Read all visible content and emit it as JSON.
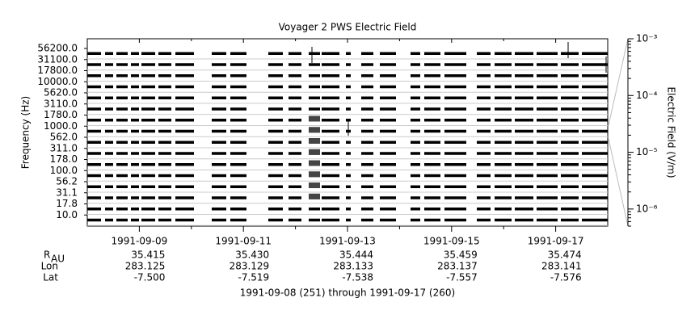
{
  "chart_data": {
    "type": "stacked-channels",
    "title": "Voyager 2 PWS Electric Field",
    "ylabel": "Frequency (Hz)",
    "y2label": "Electric Field (V/m)",
    "channels": [
      "56200.0",
      "31100.0",
      "17800.0",
      "10000.0",
      "5620.0",
      "3110.0",
      "1780.0",
      "1000.0",
      "562.0",
      "311.0",
      "178.0",
      "100.0",
      "56.2",
      "31.1",
      "17.8",
      "10.0"
    ],
    "xlim": [
      "1991-09-08",
      "1991-09-18"
    ],
    "xticks": [
      "1991-09-09",
      "1991-09-11",
      "1991-09-13",
      "1991-09-15",
      "1991-09-17"
    ],
    "xminorticks": [
      "1991-09-10",
      "1991-09-12",
      "1991-09-14",
      "1991-09-16"
    ],
    "y2log": true,
    "y2lim": [
      5e-07,
      0.001
    ],
    "y2ticks": [
      {
        "value": 0.001,
        "label": "10⁻³"
      },
      {
        "value": 0.0001,
        "label": "10⁻⁴"
      },
      {
        "value": 1e-05,
        "label": "10⁻⁵"
      },
      {
        "value": 1e-06,
        "label": "10⁻⁶"
      }
    ],
    "ephemeris": [
      {
        "label": "R",
        "sub": "AU",
        "values": [
          "35.415",
          "35.430",
          "35.444",
          "35.459",
          "35.474"
        ]
      },
      {
        "label": "Lon",
        "values": [
          "283.125",
          "283.129",
          "283.133",
          "283.137",
          "283.141"
        ]
      },
      {
        "label": "Lat",
        "values": [
          "-7.500",
          "-7.519",
          "-7.538",
          "-7.557",
          "-7.576"
        ]
      }
    ],
    "footer": "1991-09-08 (251) through 1991-09-17 (260)"
  }
}
